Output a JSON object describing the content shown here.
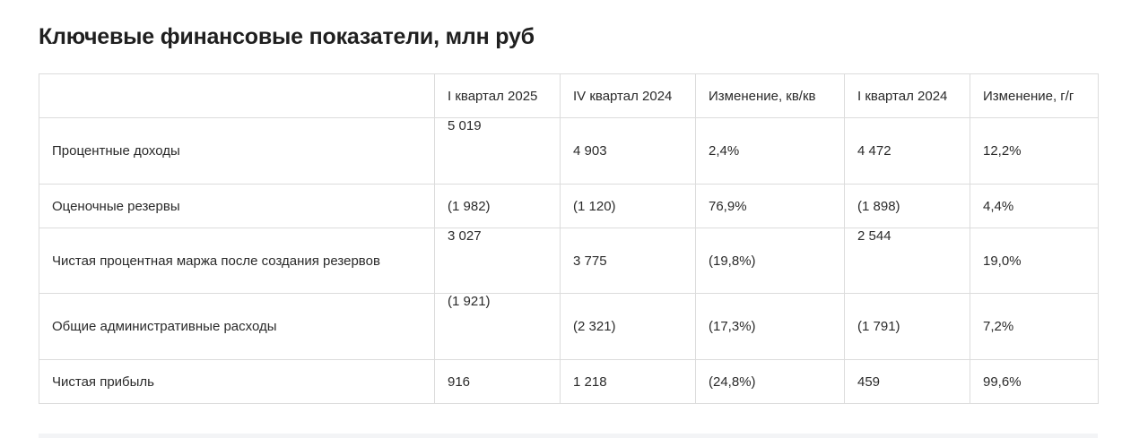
{
  "title": "Ключевые финансовые показатели, млн руб",
  "table": {
    "headers": [
      "",
      "I квартал 2025",
      "IV квартал 2024",
      "Изменение, кв/кв",
      "I квартал 2024",
      "Изменение, г/г"
    ],
    "rows": [
      [
        "Процентные доходы",
        "5 019",
        "4 903",
        "2,4%",
        "4 472",
        "12,2%"
      ],
      [
        "Оценочные резервы",
        "(1 982)",
        "(1 120)",
        "76,9%",
        "(1 898)",
        "4,4%"
      ],
      [
        "Чистая процентная маржа после создания резервов",
        "3 027",
        "3 775",
        "(19,8%)",
        "2 544",
        "19,0%"
      ],
      [
        "Общие административные расходы",
        "(1 921)",
        "(2 321)",
        "(17,3%)",
        "(1 791)",
        "7,2%"
      ],
      [
        "Чистая прибыль",
        "916",
        "1 218",
        "(24,8%)",
        "459",
        "99,6%"
      ]
    ]
  }
}
